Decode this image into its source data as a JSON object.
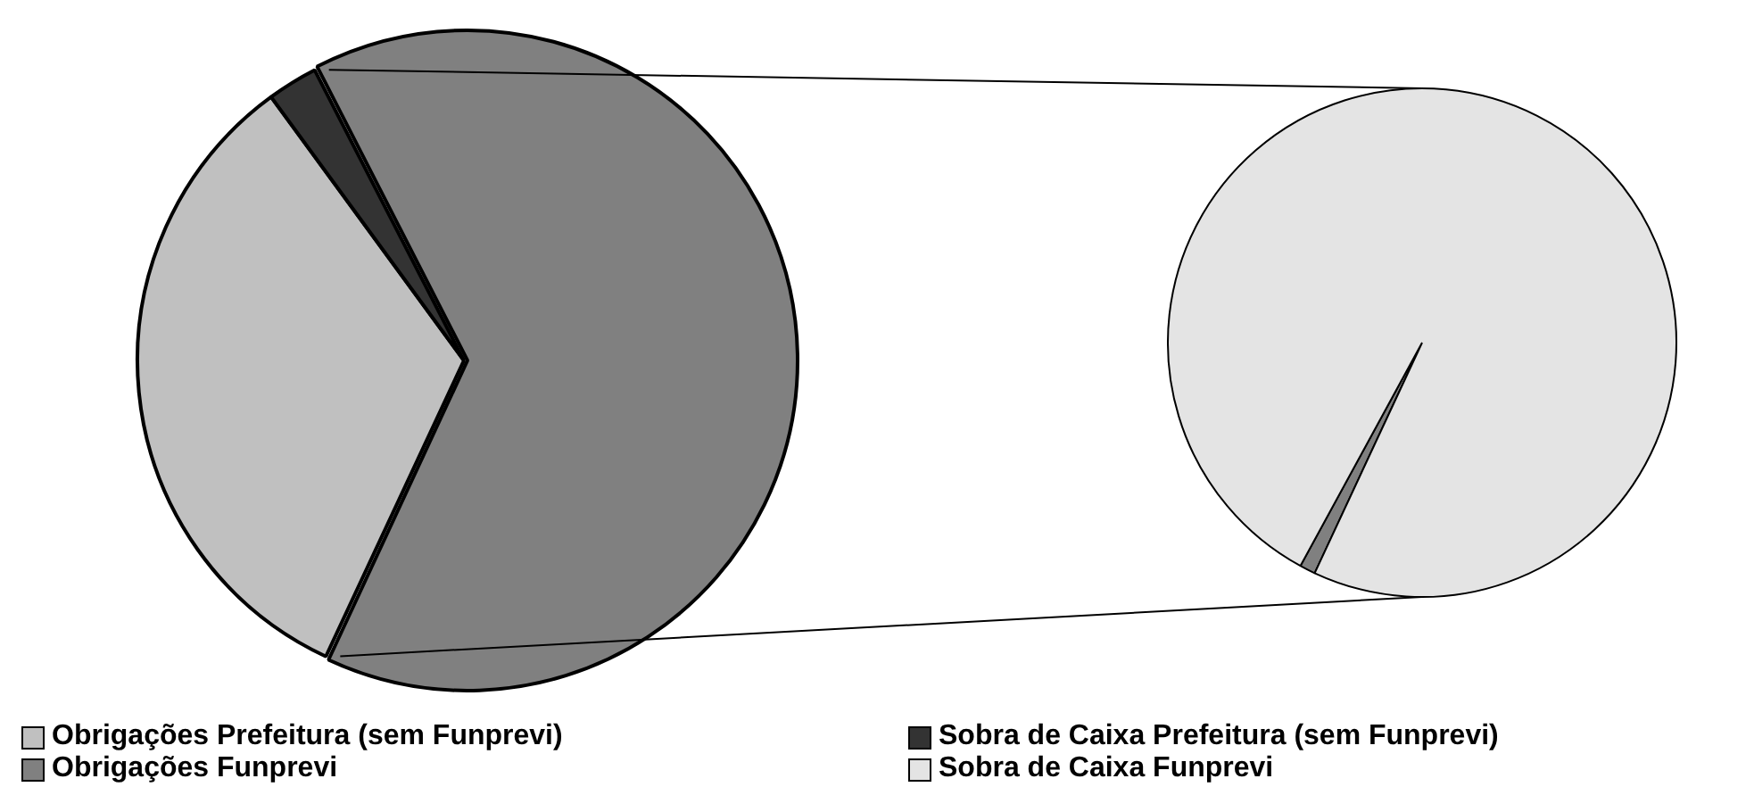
{
  "chart_data": [
    {
      "type": "pie",
      "categories": [
        "Obrigações Prefeitura (sem Funprevi)",
        "Sobra de Caixa Prefeitura (sem Funprevi)",
        null
      ],
      "values": [
        33,
        2.5,
        64.5
      ],
      "colors": [
        "#c0c0c0",
        "#333333",
        "#808080"
      ],
      "legend": "bottom"
    },
    {
      "type": "pie",
      "categories": [
        "Obrigações Funprevi",
        "Sobra de Caixa Funprevi"
      ],
      "values": [
        1,
        99
      ],
      "colors": [
        "#808080",
        "#e4e4e4"
      ],
      "legend": "bottom"
    }
  ]
}
